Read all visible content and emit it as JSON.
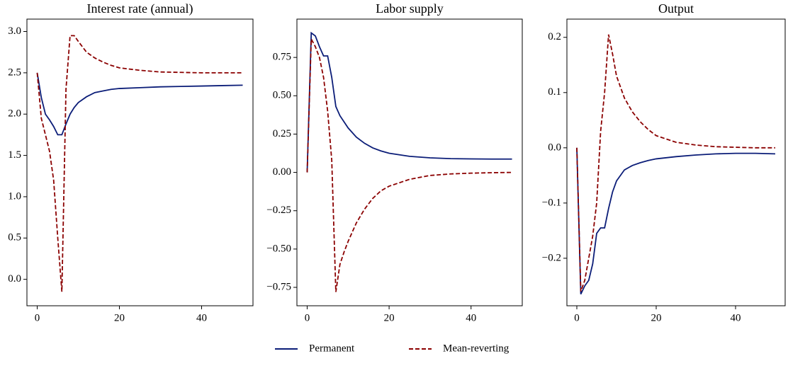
{
  "chart_data": [
    {
      "type": "line",
      "title": "Interest rate (annual)",
      "x": [
        0,
        1,
        2,
        3,
        4,
        5,
        6,
        7,
        8,
        9,
        10,
        12,
        14,
        16,
        18,
        20,
        25,
        30,
        35,
        40,
        45,
        50
      ],
      "series": [
        {
          "name": "Permanent",
          "color": "#0b1d78",
          "linestyle": "solid",
          "values": [
            2.5,
            2.2,
            2.0,
            1.93,
            1.85,
            1.75,
            1.75,
            1.88,
            2.0,
            2.08,
            2.14,
            2.21,
            2.26,
            2.28,
            2.3,
            2.31,
            2.32,
            2.33,
            2.335,
            2.34,
            2.345,
            2.35
          ]
        },
        {
          "name": "Mean-reverting",
          "color": "#8b0000",
          "linestyle": "dashed",
          "values": [
            2.5,
            1.95,
            1.75,
            1.55,
            1.2,
            0.5,
            -0.15,
            2.3,
            2.95,
            2.95,
            2.88,
            2.75,
            2.68,
            2.63,
            2.59,
            2.56,
            2.53,
            2.51,
            2.505,
            2.5,
            2.5,
            2.5
          ]
        }
      ],
      "xlim": [
        -2.5,
        52.5
      ],
      "xticks": [
        0,
        20,
        40
      ],
      "ylim": [
        -0.32,
        3.15
      ],
      "yticks": [
        {
          "value": 0,
          "label": "0.0"
        },
        0.5,
        {
          "value": 1,
          "label": "1.0"
        },
        1.5,
        {
          "value": 2,
          "label": "2.0"
        },
        2.5,
        {
          "value": 3,
          "label": "3.0"
        }
      ]
    },
    {
      "type": "line",
      "title": "Labor supply",
      "x": [
        0,
        1,
        2,
        3,
        4,
        5,
        6,
        7,
        8,
        9,
        10,
        12,
        14,
        16,
        18,
        20,
        25,
        30,
        35,
        40,
        45,
        50
      ],
      "series": [
        {
          "name": "Permanent",
          "color": "#0b1d78",
          "linestyle": "solid",
          "values": [
            0,
            0.91,
            0.89,
            0.82,
            0.76,
            0.76,
            0.62,
            0.43,
            0.37,
            0.33,
            0.29,
            0.23,
            0.19,
            0.16,
            0.14,
            0.125,
            0.105,
            0.095,
            0.09,
            0.088,
            0.087,
            0.087
          ]
        },
        {
          "name": "Mean-reverting",
          "color": "#8b0000",
          "linestyle": "dashed",
          "values": [
            0,
            0.87,
            0.82,
            0.75,
            0.62,
            0.4,
            0.08,
            -0.78,
            -0.6,
            -0.52,
            -0.45,
            -0.33,
            -0.24,
            -0.17,
            -0.12,
            -0.09,
            -0.045,
            -0.02,
            -0.01,
            -0.005,
            -0.002,
            0
          ]
        }
      ],
      "xlim": [
        -2.5,
        52.5
      ],
      "xticks": [
        0,
        20,
        40
      ],
      "ylim": [
        -0.87,
        1.0
      ],
      "yticks": [
        {
          "value": -0.75,
          "label": "−0.75"
        },
        {
          "value": -0.5,
          "label": "−0.50"
        },
        {
          "value": -0.25,
          "label": "−0.25"
        },
        {
          "value": 0,
          "label": "0.00"
        },
        0.25,
        {
          "value": 0.5,
          "label": "0.50"
        },
        0.75
      ]
    },
    {
      "type": "line",
      "title": "Output",
      "x": [
        0,
        1,
        2,
        3,
        4,
        5,
        6,
        7,
        8,
        9,
        10,
        12,
        14,
        16,
        18,
        20,
        25,
        30,
        35,
        40,
        45,
        50
      ],
      "series": [
        {
          "name": "Permanent",
          "color": "#0b1d78",
          "linestyle": "solid",
          "values": [
            0,
            -0.265,
            -0.25,
            -0.24,
            -0.21,
            -0.155,
            -0.145,
            -0.145,
            -0.11,
            -0.08,
            -0.06,
            -0.04,
            -0.032,
            -0.027,
            -0.023,
            -0.02,
            -0.016,
            -0.013,
            -0.011,
            -0.01,
            -0.01,
            -0.011
          ]
        },
        {
          "name": "Mean-reverting",
          "color": "#8b0000",
          "linestyle": "dashed",
          "values": [
            0,
            -0.26,
            -0.24,
            -0.2,
            -0.16,
            -0.1,
            0.03,
            0.1,
            0.205,
            0.17,
            0.13,
            0.09,
            0.065,
            0.047,
            0.033,
            0.022,
            0.01,
            0.005,
            0.002,
            0.001,
            0,
            0
          ]
        }
      ],
      "xlim": [
        -2.5,
        52.5
      ],
      "xticks": [
        0,
        20,
        40
      ],
      "ylim": [
        -0.286,
        0.233
      ],
      "yticks": [
        {
          "value": -0.2,
          "label": "−0.2"
        },
        {
          "value": -0.1,
          "label": "−0.1"
        },
        {
          "value": 0,
          "label": "0.0"
        },
        0.1,
        0.2
      ]
    }
  ]
}
